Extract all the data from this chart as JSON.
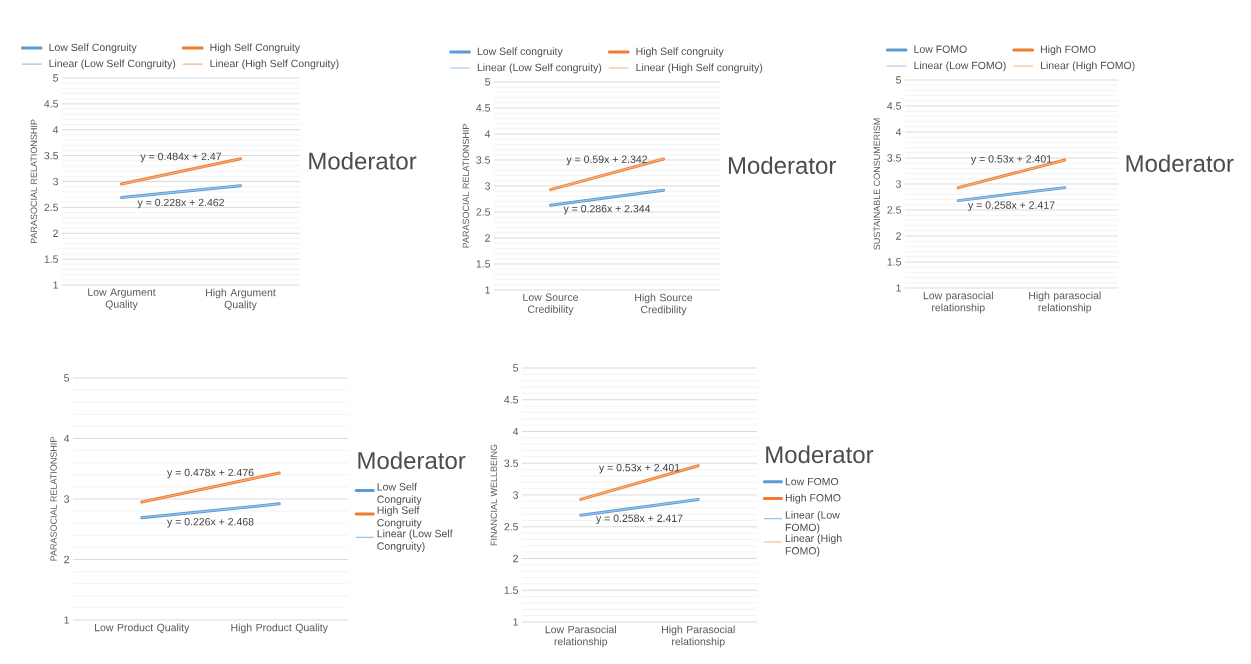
{
  "chart_data": [
    {
      "type": "line",
      "ylabel": "PARASOCIAL RELATIONSHIP",
      "legend_title": "Moderator",
      "categories": [
        "Low Argument Quality",
        "High Argument Quality"
      ],
      "series": [
        {
          "name": "Low Self Congruity",
          "color": "#5b9bd5",
          "values": [
            2.69,
            2.92
          ]
        },
        {
          "name": "High Self Congruity",
          "color": "#ed7d31",
          "values": [
            2.95,
            3.44
          ]
        },
        {
          "name": "Linear (Low Self Congruity)",
          "color": "#9dc3e6",
          "values": [
            2.69,
            2.92
          ]
        },
        {
          "name": "Linear (High Self Congruity)",
          "color": "#f4b183",
          "values": [
            2.95,
            3.44
          ]
        }
      ],
      "ylim": [
        1,
        5
      ],
      "yticks": [
        1,
        1.5,
        2,
        2.5,
        3,
        3.5,
        4,
        4.5,
        5
      ],
      "grid": "y",
      "legend": "top",
      "annotations": [
        "y = 0.228x + 2.462",
        "y = 0.484x + 2.47"
      ]
    },
    {
      "type": "line",
      "ylabel": "PARASOCIAL RELATIONSHIP",
      "legend_title": "Moderator",
      "categories": [
        "Low Source Credibility",
        "High Source Credibility"
      ],
      "series": [
        {
          "name": "Low Self congruity",
          "color": "#5b9bd5",
          "values": [
            2.63,
            2.92
          ]
        },
        {
          "name": "High Self congruity",
          "color": "#ed7d31",
          "values": [
            2.93,
            3.52
          ]
        },
        {
          "name": "Linear (Low Self congruity)",
          "color": "#9dc3e6",
          "values": [
            2.63,
            2.92
          ]
        },
        {
          "name": "Linear (High Self congruity)",
          "color": "#f4b183",
          "values": [
            2.93,
            3.52
          ]
        }
      ],
      "ylim": [
        1,
        5
      ],
      "yticks": [
        1,
        1.5,
        2,
        2.5,
        3,
        3.5,
        4,
        4.5,
        5
      ],
      "grid": "y",
      "legend": "top",
      "annotations": [
        "y = 0.286x + 2.344",
        "y = 0.59x + 2.342"
      ]
    },
    {
      "type": "line",
      "ylabel": "SUSTAINABLE CONSUMERISM",
      "legend_title": "Moderator",
      "categories": [
        "Low parasocial relationship",
        "High parasocial relationship"
      ],
      "series": [
        {
          "name": "Low FOMO",
          "color": "#5b9bd5",
          "values": [
            2.68,
            2.93
          ]
        },
        {
          "name": "High FOMO",
          "color": "#ed7d31",
          "values": [
            2.93,
            3.46
          ]
        },
        {
          "name": "Linear (Low FOMO)",
          "color": "#9dc3e6",
          "values": [
            2.68,
            2.93
          ]
        },
        {
          "name": "Linear (High FOMO)",
          "color": "#f4b183",
          "values": [
            2.93,
            3.46
          ]
        }
      ],
      "ylim": [
        1,
        5
      ],
      "yticks": [
        1,
        1.5,
        2,
        2.5,
        3,
        3.5,
        4,
        4.5,
        5
      ],
      "grid": "y",
      "legend": "top",
      "annotations": [
        "y = 0.258x + 2.417",
        "y = 0.53x + 2.401"
      ]
    },
    {
      "type": "line",
      "ylabel": "PARASOCIAL RELATIONSHIP",
      "legend_title": "Moderator",
      "categories": [
        "Low Product Quality",
        "High Product Quality"
      ],
      "series": [
        {
          "name": "Low Self Congruity",
          "color": "#5b9bd5",
          "values": [
            2.69,
            2.92
          ]
        },
        {
          "name": "High Self Congruity",
          "color": "#ed7d31",
          "values": [
            2.95,
            3.43
          ]
        },
        {
          "name": "Linear (Low Self Congruity)",
          "color": "#9dc3e6",
          "values": [
            2.69,
            2.92
          ]
        },
        {
          "color": "#f4b183",
          "values": [
            2.95,
            3.43
          ]
        }
      ],
      "ylim": [
        1,
        5
      ],
      "yticks": [
        1,
        2,
        3,
        4,
        5
      ],
      "grid": "y",
      "legend": "right",
      "annotations": [
        "y = 0.226x + 2.468",
        "y = 0.478x + 2.476"
      ]
    },
    {
      "type": "line",
      "ylabel": "FINANCIAL WELLBEING",
      "legend_title": "Moderator",
      "categories": [
        "Low Parasocial relationship",
        "High Parasocial relationship"
      ],
      "series": [
        {
          "name": "Low FOMO",
          "color": "#5b9bd5",
          "values": [
            2.68,
            2.93
          ]
        },
        {
          "name": "High FOMO",
          "color": "#ed7d31",
          "values": [
            2.93,
            3.46
          ]
        },
        {
          "name": "Linear (Low FOMO)",
          "color": "#9dc3e6",
          "values": [
            2.68,
            2.93
          ]
        },
        {
          "name": "Linear (High FOMO)",
          "color": "#f4b183",
          "values": [
            2.93,
            3.46
          ]
        }
      ],
      "ylim": [
        1,
        5
      ],
      "yticks": [
        1,
        1.5,
        2,
        2.5,
        3,
        3.5,
        4,
        4.5,
        5
      ],
      "grid": "y",
      "legend": "right",
      "annotations": [
        "y = 0.258x + 2.417",
        "y = 0.53x + 2.401"
      ]
    }
  ]
}
